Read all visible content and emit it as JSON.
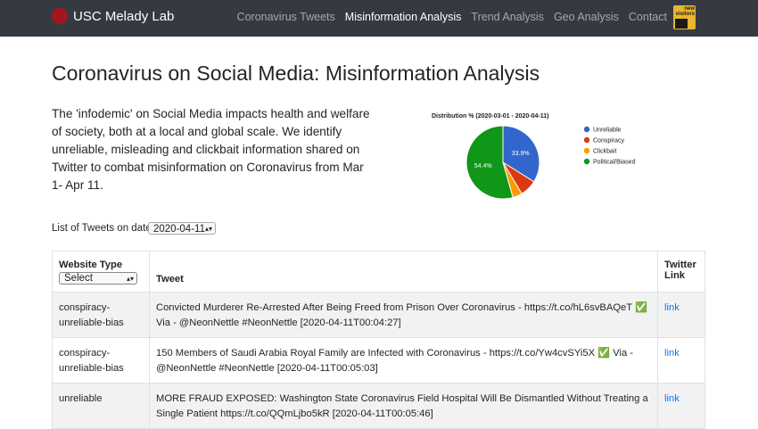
{
  "navbar": {
    "brand": "USC Melady Lab",
    "links": [
      "Coronavirus Tweets",
      "Misinformation Analysis",
      "Trend Analysis",
      "Geo Analysis",
      "Contact"
    ],
    "badge_text": "new visitors"
  },
  "page": {
    "title": "Coronavirus on Social Media: Misinformation Analysis",
    "intro": "The 'infodemic' on Social Media impacts health and welfare of society, both at a local and global scale. We identify unreliable, misleading and clickbait information shared on Twitter to combat misinformation on Coronavirus from Mar 1- Apr 11."
  },
  "chart_data": {
    "type": "pie",
    "title": "Distribution % (2020-03-01 - 2020-04-11)",
    "legend_position": "right",
    "slices": [
      {
        "label": "Unreliable",
        "value": 33.9,
        "color": "#3366cc",
        "shown_label": "33.9%"
      },
      {
        "label": "Conspiracy",
        "value": 7.5,
        "color": "#dc3912",
        "shown_label": ""
      },
      {
        "label": "Clickbait",
        "value": 4.2,
        "color": "#ff9900",
        "shown_label": ""
      },
      {
        "label": "Political/Biased",
        "value": 54.4,
        "color": "#109618",
        "shown_label": "54.4%"
      }
    ]
  },
  "filter": {
    "label": "List of Tweets on date",
    "date": "2020-04-11"
  },
  "table": {
    "headers": {
      "type": "Website Type",
      "type_select": "Select",
      "tweet": "Tweet",
      "link": "Twitter Link"
    },
    "rows": [
      {
        "type": "conspiracy-unreliable-bias",
        "tweet": "Convicted Murderer Re-Arrested After Being Freed from Prison Over Coronavirus - https://t.co/hL6svBAQeT ✅ Via - @NeonNettle #NeonNettle [2020-04-11T00:04:27]",
        "link": "link"
      },
      {
        "type": "conspiracy-unreliable-bias",
        "tweet": "150 Members of Saudi Arabia Royal Family are Infected with Coronavirus - https://t.co/Yw4cvSYi5X ✅ Via - @NeonNettle #NeonNettle [2020-04-11T00:05:03]",
        "link": "link"
      },
      {
        "type": "unreliable",
        "tweet": "MORE FRAUD EXPOSED: Washington State Coronavirus Field Hospital Will Be Dismantled Without Treating a Single Patient https://t.co/QQmLjbo5kR [2020-04-11T00:05:46]",
        "link": "link"
      }
    ]
  }
}
